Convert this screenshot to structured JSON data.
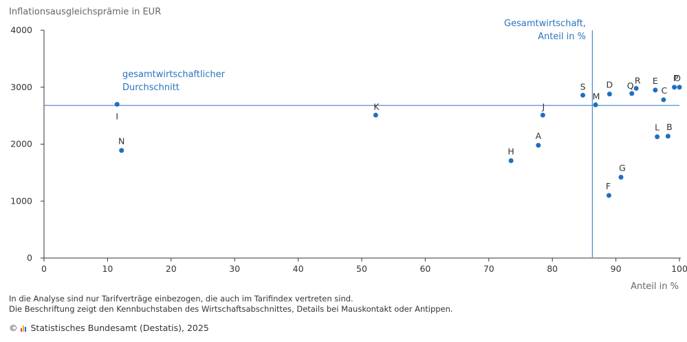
{
  "chart_data": {
    "type": "scatter",
    "ylabel": "Inflationsausgleichsprämie in EUR",
    "xlabel": "Anteil in %",
    "xlim": [
      0,
      100
    ],
    "ylim": [
      0,
      4000
    ],
    "xticks": [
      "0",
      "10",
      "20",
      "30",
      "40",
      "50",
      "60",
      "70",
      "80",
      "90",
      "100"
    ],
    "yticks": [
      "0",
      "1000",
      "2000",
      "3000",
      "4000"
    ],
    "grid": false,
    "point_color": "#1f6fbf",
    "reference_color": "#4f8fcf",
    "points": [
      {
        "label": "A",
        "x": 77.8,
        "y": 1980
      },
      {
        "label": "B",
        "x": 98.2,
        "y": 2140
      },
      {
        "label": "C",
        "x": 97.5,
        "y": 2780
      },
      {
        "label": "D",
        "x": 89.0,
        "y": 2880
      },
      {
        "label": "E",
        "x": 96.2,
        "y": 2950
      },
      {
        "label": "F",
        "x": 88.9,
        "y": 1100
      },
      {
        "label": "G",
        "x": 90.8,
        "y": 1420
      },
      {
        "label": "H",
        "x": 73.5,
        "y": 1710
      },
      {
        "label": "I",
        "x": 11.5,
        "y": 2700
      },
      {
        "label": "J",
        "x": 78.5,
        "y": 2510
      },
      {
        "label": "K",
        "x": 52.2,
        "y": 2510
      },
      {
        "label": "L",
        "x": 96.5,
        "y": 2130
      },
      {
        "label": "M",
        "x": 86.8,
        "y": 2690
      },
      {
        "label": "N",
        "x": 12.2,
        "y": 1890
      },
      {
        "label": "O",
        "x": 100.0,
        "y": 3000
      },
      {
        "label": "P",
        "x": 99.2,
        "y": 3000
      },
      {
        "label": "Q",
        "x": 92.5,
        "y": 2890
      },
      {
        "label": "R",
        "x": 93.2,
        "y": 2980
      },
      {
        "label": "S",
        "x": 84.8,
        "y": 2860
      }
    ],
    "reference_lines": [
      {
        "axis": "y",
        "value": 2680,
        "label_line1": "gesamtwirtschaftlicher",
        "label_line2": "Durchschnitt"
      },
      {
        "axis": "x",
        "value": 86.3,
        "label_line1": "Gesamtwirtschaft,",
        "label_line2": "Anteil in %"
      }
    ]
  },
  "footnotes": {
    "line1": "In die Analyse sind nur Tarifverträge einbezogen, die auch im Tarifindex vertreten sind.",
    "line2": "Die Beschriftung zeigt den Kennbuchstaben des Wirtschaftsabschnittes, Details bei Mauskontakt oder Antippen."
  },
  "source": {
    "copyright": "©",
    "text": "Statistisches Bundesamt (Destatis), 2025",
    "logo_icon": "destatis-bars-icon",
    "logo_colors": [
      "#e03c31",
      "#f5a623",
      "#1f6fbf"
    ]
  }
}
